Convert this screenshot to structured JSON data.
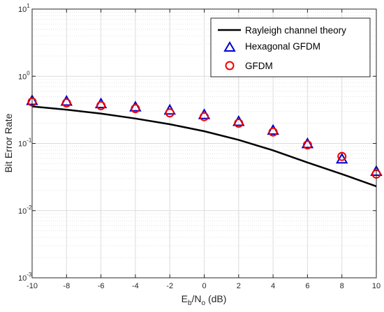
{
  "chart_data": {
    "type": "scatter",
    "title": "",
    "xlabel": {
      "main": "E",
      "sub1": "b",
      "mid": "/N",
      "sub2": "o",
      "tail": " (dB)"
    },
    "ylabel": "Bit Error Rate",
    "xlim": [
      -10,
      10
    ],
    "ylim": [
      0.001,
      10
    ],
    "yscale": "log",
    "grid": true,
    "minor_grid": true,
    "legend_position": "top-right",
    "x_ticks": [
      -10,
      -8,
      -6,
      -4,
      -2,
      0,
      2,
      4,
      6,
      8,
      10
    ],
    "x_tick_labels": [
      "-10",
      "-8",
      "-6",
      "-4",
      "-2",
      "0",
      "2",
      "4",
      "6",
      "8",
      "10"
    ],
    "y_ticks": [
      {
        "value": 0.001,
        "base": "10",
        "exp": "-3"
      },
      {
        "value": 0.01,
        "base": "10",
        "exp": "-2"
      },
      {
        "value": 0.1,
        "base": "10",
        "exp": "-1"
      },
      {
        "value": 1,
        "base": "10",
        "exp": "0"
      },
      {
        "value": 10,
        "base": "10",
        "exp": "1"
      }
    ],
    "series": [
      {
        "name": "Rayleigh channel theory",
        "style": "line",
        "color": "#000000",
        "x": [
          -10,
          -8,
          -6,
          -4,
          -2,
          0,
          2,
          4,
          6,
          8,
          10
        ],
        "y": [
          0.355,
          0.318,
          0.278,
          0.235,
          0.193,
          0.152,
          0.113,
          0.079,
          0.052,
          0.035,
          0.023
        ]
      },
      {
        "name": "Hexagonal GFDM",
        "style": "triangle",
        "color": "#0000cc",
        "x": [
          -10,
          -8,
          -6,
          -4,
          -2,
          0,
          2,
          4,
          6,
          8,
          10
        ],
        "y": [
          0.43,
          0.42,
          0.385,
          0.345,
          0.31,
          0.265,
          0.21,
          0.155,
          0.098,
          0.058,
          0.038
        ]
      },
      {
        "name": "GFDM",
        "style": "circle",
        "color": "#ee0000",
        "x": [
          -10,
          -8,
          -6,
          -4,
          -2,
          0,
          2,
          4,
          6,
          8,
          10
        ],
        "y": [
          0.415,
          0.4,
          0.365,
          0.33,
          0.285,
          0.25,
          0.2,
          0.148,
          0.095,
          0.064,
          0.035
        ]
      }
    ]
  }
}
